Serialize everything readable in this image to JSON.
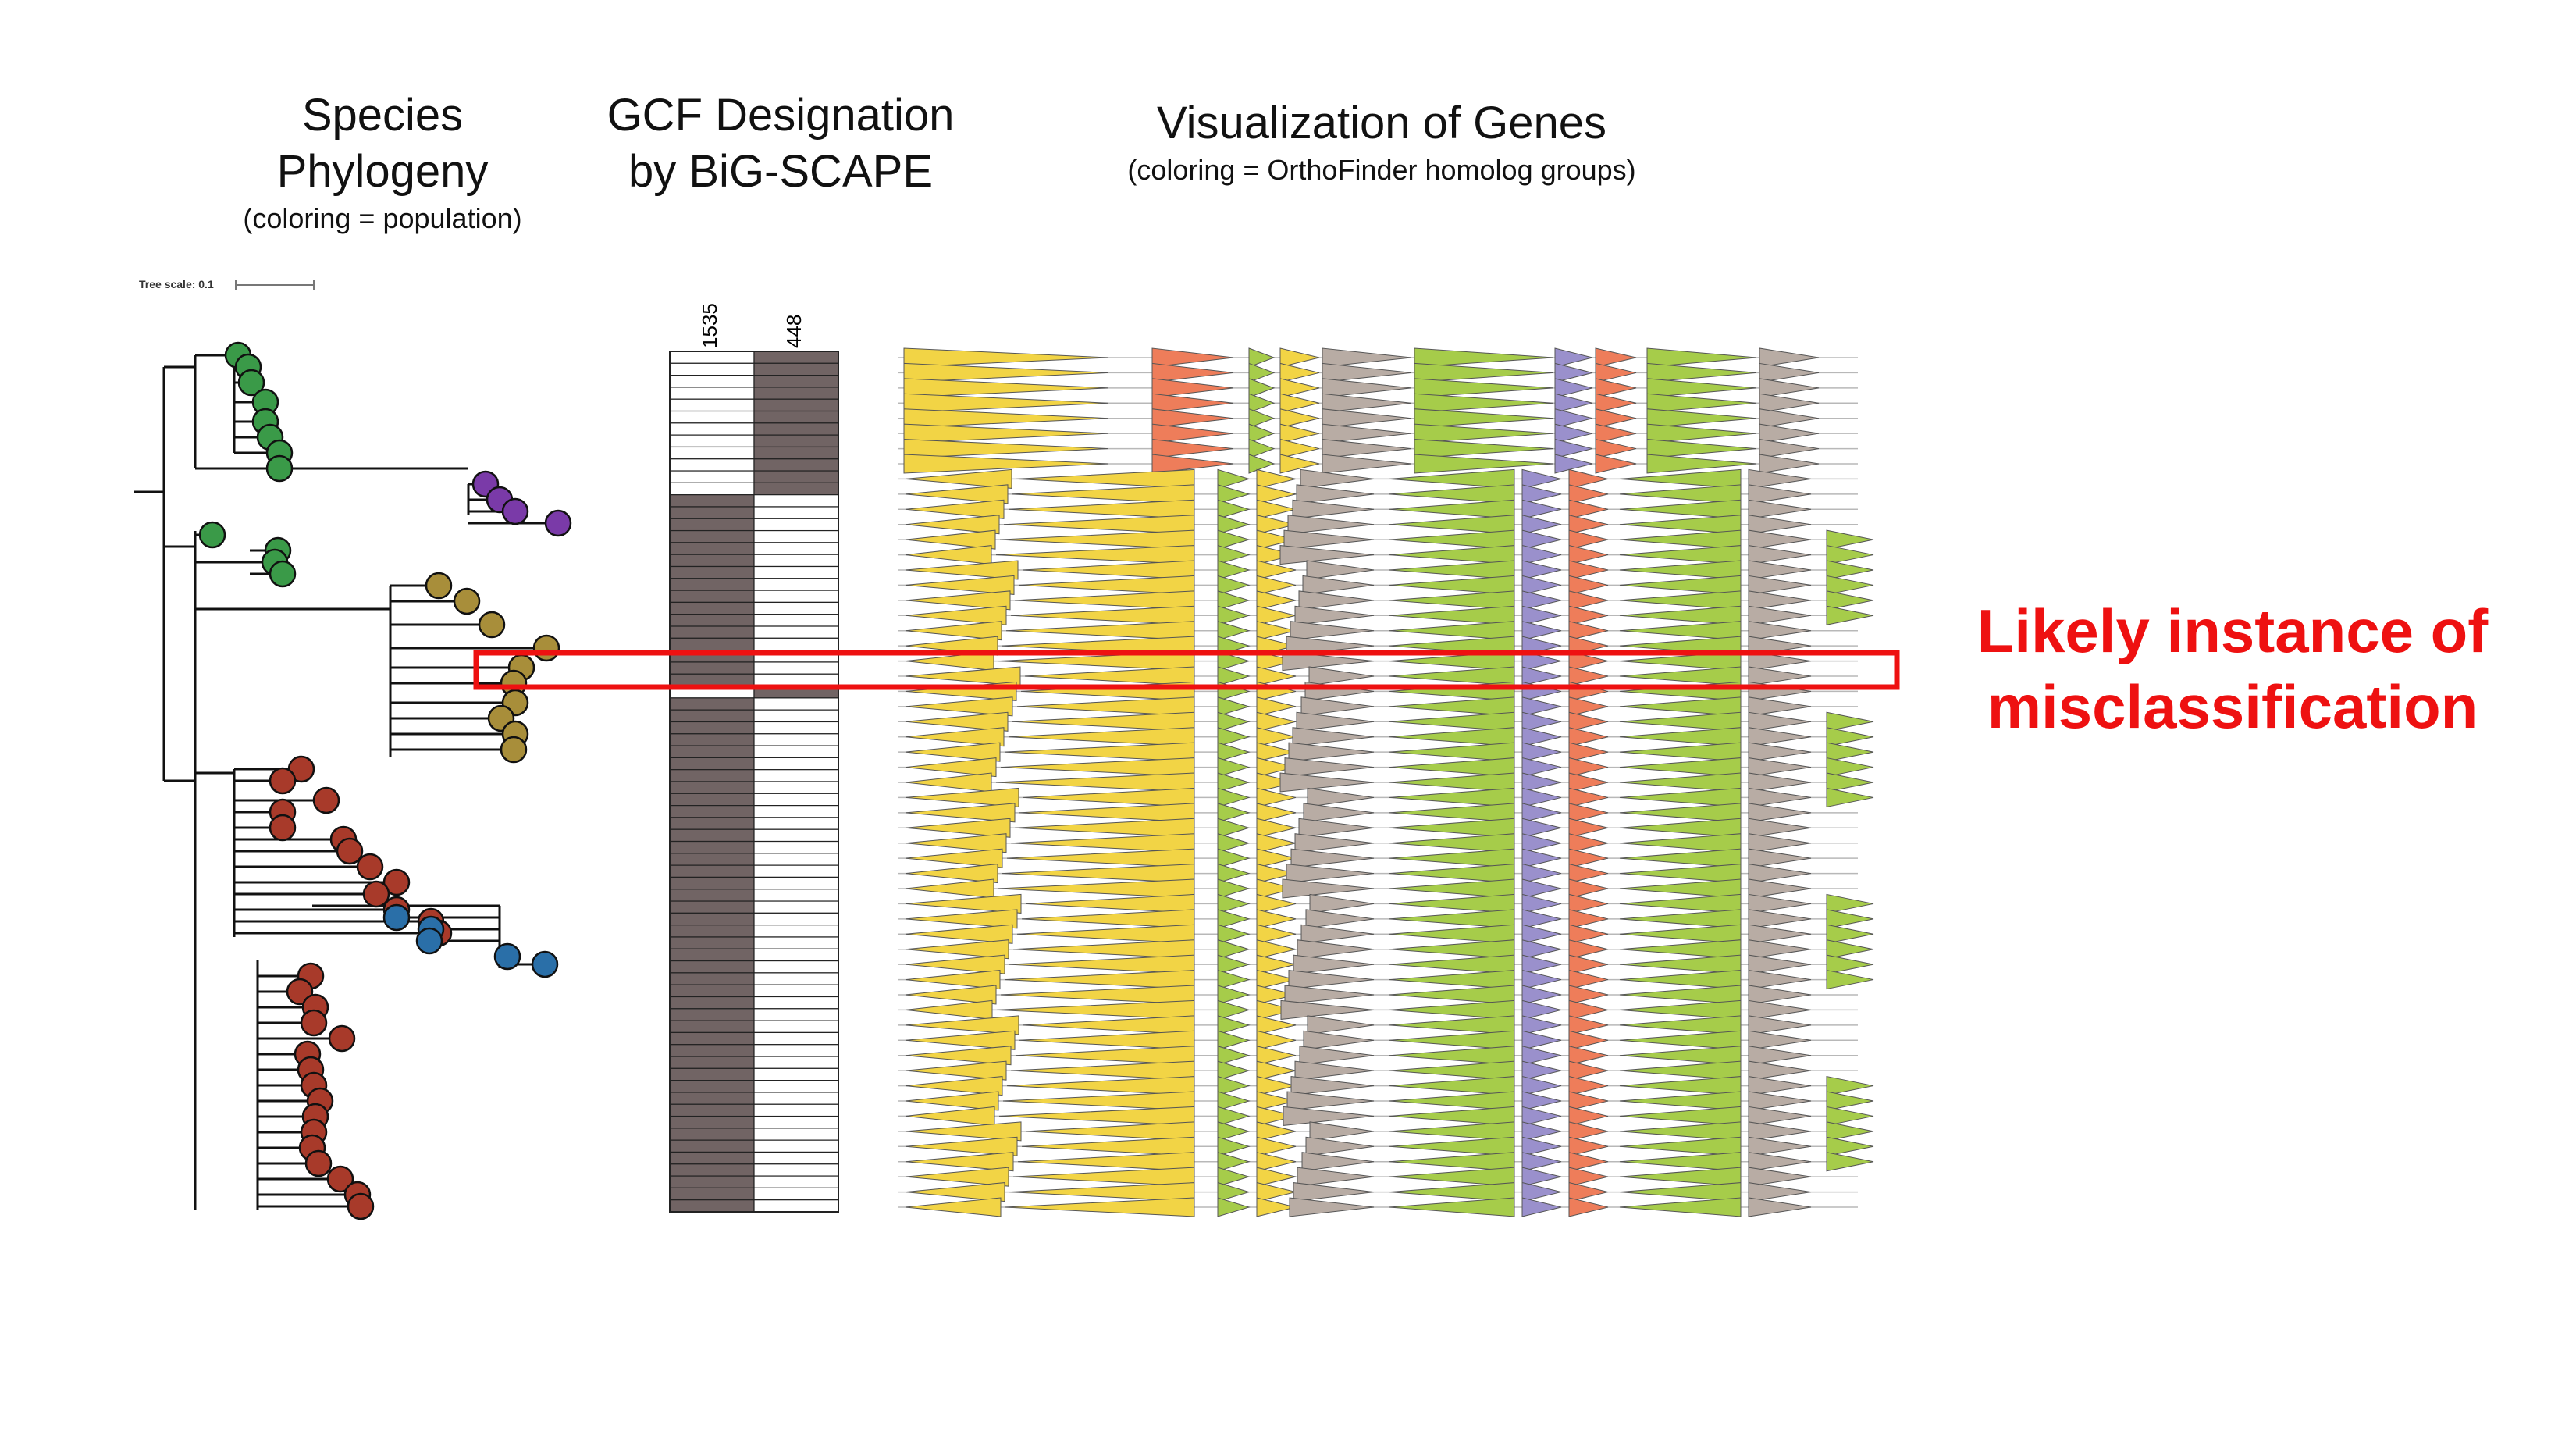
{
  "headers": {
    "phylogeny": {
      "line1": "Species",
      "line2": "Phylogeny",
      "sub": "(coloring = population)"
    },
    "gcf": {
      "line1": "GCF Designation",
      "line2": "by BiG-SCAPE"
    },
    "genes": {
      "line1": "Visualization of Genes",
      "sub": "(coloring = OrthoFinder homolog groups)"
    }
  },
  "tree_scale": "Tree scale: 0.1",
  "gcf_columns": [
    "1535",
    "448"
  ],
  "callout": {
    "line1": "Likely instance of",
    "line2": "misclassification"
  },
  "colors": {
    "gcf_fill": "#716464",
    "highlight": "#ee1111",
    "populations": [
      "#3a9a48",
      "#7a3aa8",
      "#a88e3a",
      "#a83a2a",
      "#2a6fa8"
    ],
    "homolog_groups": [
      "#f2d445",
      "#a6cc4a",
      "#b8aca4",
      "#ee7d5a",
      "#9a90cc",
      "#e68ac0"
    ]
  },
  "gcf_membership": [
    "448",
    "448",
    "448",
    "448",
    "448",
    "448",
    "448",
    "448",
    "448",
    "448",
    "448",
    "448",
    "1535",
    "1535",
    "1535",
    "1535",
    "1535",
    "1535",
    "1535",
    "1535",
    "1535",
    "1535",
    "1535",
    "1535",
    "1535",
    "1535",
    "1535",
    "1535",
    "448",
    "1535",
    "1535",
    "1535",
    "1535",
    "1535",
    "1535",
    "1535",
    "1535",
    "1535",
    "1535",
    "1535",
    "1535",
    "1535",
    "1535",
    "1535",
    "1535",
    "1535",
    "1535",
    "1535",
    "1535",
    "1535",
    "1535",
    "1535",
    "1535",
    "1535",
    "1535",
    "1535",
    "1535",
    "1535",
    "1535",
    "1535",
    "1535",
    "1535",
    "1535",
    "1535",
    "1535",
    "1535",
    "1535",
    "1535",
    "1535",
    "1535",
    "1535",
    "1535"
  ]
}
